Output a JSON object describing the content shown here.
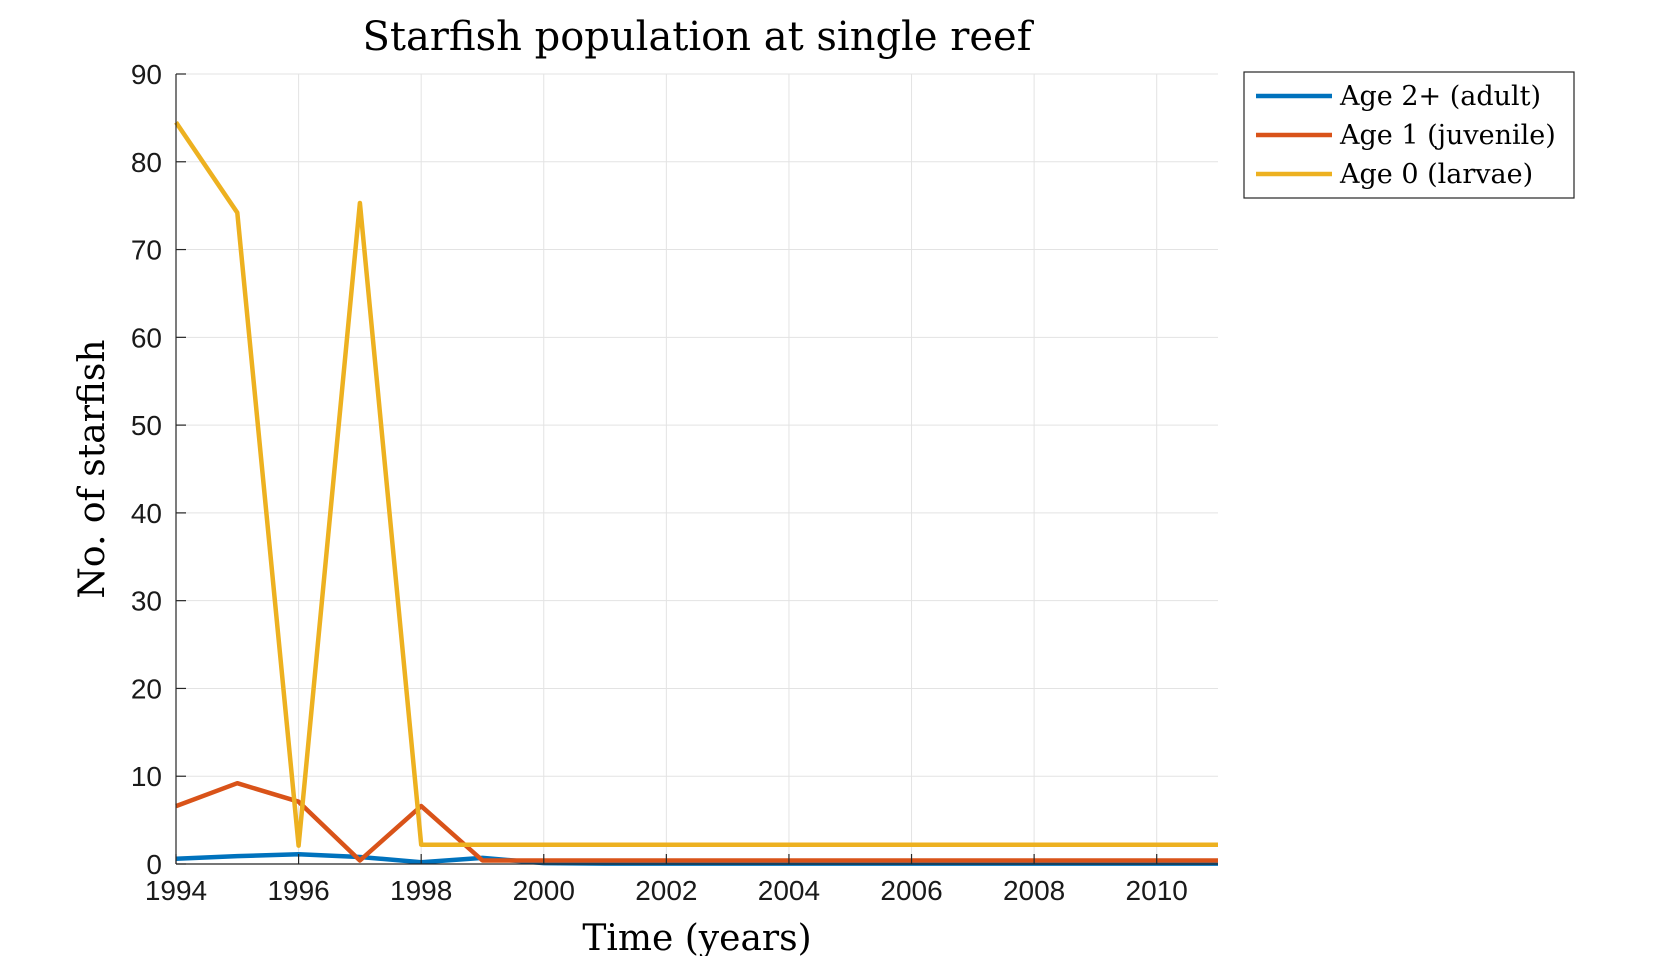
{
  "chart_data": {
    "type": "line",
    "title": "Starfish population at single reef",
    "xlabel": "Time (years)",
    "ylabel": "No. of starfish",
    "xlim": [
      1994,
      2011
    ],
    "ylim": [
      0,
      90
    ],
    "xticks": [
      1994,
      1996,
      1998,
      2000,
      2002,
      2004,
      2006,
      2008,
      2010
    ],
    "yticks": [
      0,
      10,
      20,
      30,
      40,
      50,
      60,
      70,
      80,
      90
    ],
    "grid": true,
    "legend": "outside-top-right",
    "x": [
      1994,
      1995,
      1996,
      1997,
      1998,
      1999,
      2000,
      2001,
      2002,
      2003,
      2004,
      2005,
      2006,
      2007,
      2008,
      2009,
      2010,
      2011
    ],
    "series": [
      {
        "name": "Age 2+ (adult)",
        "color": "#0072BD",
        "values": [
          0.6,
          0.9,
          1.1,
          0.8,
          0.2,
          0.7,
          0.1,
          0.05,
          0.05,
          0.05,
          0.05,
          0.05,
          0.05,
          0.05,
          0.05,
          0.05,
          0.05,
          0.05
        ]
      },
      {
        "name": "Age 1 (juvenile)",
        "color": "#D95319",
        "values": [
          6.6,
          9.2,
          7.1,
          0.4,
          6.6,
          0.4,
          0.4,
          0.4,
          0.4,
          0.4,
          0.4,
          0.4,
          0.4,
          0.4,
          0.4,
          0.4,
          0.4,
          0.4
        ]
      },
      {
        "name": "Age 0 (larvae)",
        "color": "#EDB120",
        "values": [
          84.5,
          74.2,
          2.1,
          75.3,
          2.2,
          2.2,
          2.2,
          2.2,
          2.2,
          2.2,
          2.2,
          2.2,
          2.2,
          2.2,
          2.2,
          2.2,
          2.2,
          2.2
        ]
      }
    ]
  }
}
